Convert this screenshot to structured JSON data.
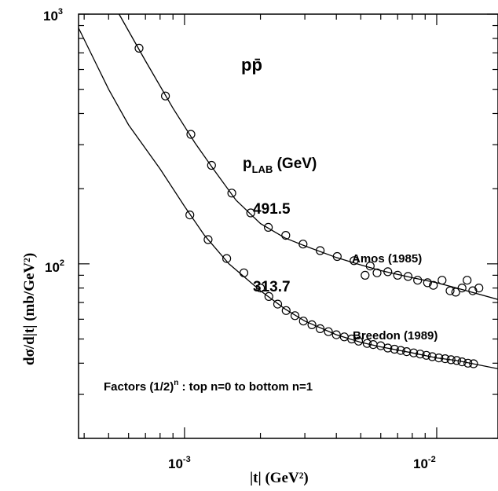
{
  "chart_data": {
    "type": "scatter",
    "title": "pp̄",
    "xlabel": "|t| (GeV²)",
    "ylabel": "dσ/d|t| (mb/GeV²)",
    "xscale": "log",
    "yscale": "log",
    "xlim": [
      0.00038,
      0.0175
    ],
    "ylim": [
      20,
      1000
    ],
    "x_tick_labels": [
      {
        "base": "10",
        "exp": "-3",
        "value": 0.001
      },
      {
        "base": "10",
        "exp": "-2",
        "value": 0.01
      }
    ],
    "y_tick_labels": [
      {
        "base": "10",
        "exp": "2",
        "value": 100
      },
      {
        "base": "10",
        "exp": "3",
        "value": 1000
      }
    ],
    "legend_header": {
      "main": "p",
      "sub": "LAB",
      "rest": " (GeV)"
    },
    "factors_note": {
      "pre": "Factors (1/2)",
      "sup": "n",
      "post": " : top n=0 to bottom n=1"
    },
    "series": [
      {
        "name": "491.5",
        "source": "Amos (1985)",
        "points": [
          [
            0.00066,
            730
          ],
          [
            0.00084,
            470
          ],
          [
            0.00106,
            330
          ],
          [
            0.00128,
            248
          ],
          [
            0.00154,
            192
          ],
          [
            0.00183,
            160
          ],
          [
            0.00215,
            140
          ],
          [
            0.00252,
            130
          ],
          [
            0.00295,
            120
          ],
          [
            0.00345,
            113
          ],
          [
            0.00403,
            107
          ],
          [
            0.0047,
            103
          ],
          [
            0.00545,
            98
          ],
          [
            0.0052,
            90
          ],
          [
            0.0058,
            92
          ],
          [
            0.0064,
            93
          ],
          [
            0.007,
            90
          ],
          [
            0.0077,
            89
          ],
          [
            0.0084,
            86
          ],
          [
            0.0092,
            84
          ],
          [
            0.0097,
            82
          ],
          [
            0.0105,
            86
          ],
          [
            0.0113,
            78
          ],
          [
            0.0119,
            77
          ],
          [
            0.0126,
            80
          ],
          [
            0.0132,
            86
          ],
          [
            0.0139,
            78
          ],
          [
            0.0147,
            80
          ]
        ],
        "curve": [
          [
            0.00055,
            1000
          ],
          [
            0.0007,
            650
          ],
          [
            0.0009,
            420
          ],
          [
            0.0011,
            305
          ],
          [
            0.0013,
            240
          ],
          [
            0.0016,
            180
          ],
          [
            0.002,
            145
          ],
          [
            0.0025,
            127
          ],
          [
            0.003,
            118
          ],
          [
            0.004,
            106
          ],
          [
            0.005,
            99
          ],
          [
            0.006,
            94
          ],
          [
            0.008,
            88
          ],
          [
            0.01,
            84
          ],
          [
            0.012,
            80
          ],
          [
            0.0175,
            72
          ]
        ]
      },
      {
        "name": "313.7",
        "source": "Breedon (1989)",
        "points": [
          [
            0.00105,
            157
          ],
          [
            0.00124,
            125
          ],
          [
            0.00147,
            105
          ],
          [
            0.00172,
            92
          ],
          [
            0.002,
            80
          ],
          [
            0.00216,
            74
          ],
          [
            0.00234,
            69
          ],
          [
            0.00253,
            65
          ],
          [
            0.00274,
            62
          ],
          [
            0.00296,
            59
          ],
          [
            0.0032,
            57
          ],
          [
            0.00345,
            55
          ],
          [
            0.00372,
            53.5
          ],
          [
            0.004,
            52
          ],
          [
            0.0043,
            51
          ],
          [
            0.0046,
            50
          ],
          [
            0.0049,
            49
          ],
          [
            0.0053,
            48
          ],
          [
            0.0056,
            47.5
          ],
          [
            0.006,
            47
          ],
          [
            0.0064,
            46
          ],
          [
            0.0068,
            45.5
          ],
          [
            0.0072,
            45
          ],
          [
            0.0076,
            44.5
          ],
          [
            0.0081,
            44
          ],
          [
            0.0086,
            43.5
          ],
          [
            0.0091,
            43
          ],
          [
            0.0096,
            42.5
          ],
          [
            0.0102,
            42
          ],
          [
            0.0108,
            41.7
          ],
          [
            0.0114,
            41.3
          ],
          [
            0.012,
            41
          ],
          [
            0.0126,
            40.5
          ],
          [
            0.0133,
            40
          ],
          [
            0.014,
            39.8
          ]
        ],
        "curve": [
          [
            0.00038,
            880
          ],
          [
            0.0005,
            500
          ],
          [
            0.0006,
            360
          ],
          [
            0.0008,
            240
          ],
          [
            0.001,
            170
          ],
          [
            0.0012,
            130
          ],
          [
            0.0015,
            100
          ],
          [
            0.002,
            78
          ],
          [
            0.0025,
            66
          ],
          [
            0.003,
            59
          ],
          [
            0.004,
            52
          ],
          [
            0.005,
            48.5
          ],
          [
            0.006,
            46.5
          ],
          [
            0.008,
            44
          ],
          [
            0.01,
            42
          ],
          [
            0.012,
            41
          ],
          [
            0.0175,
            38
          ]
        ]
      }
    ],
    "markers": "open circles",
    "grid": false
  }
}
